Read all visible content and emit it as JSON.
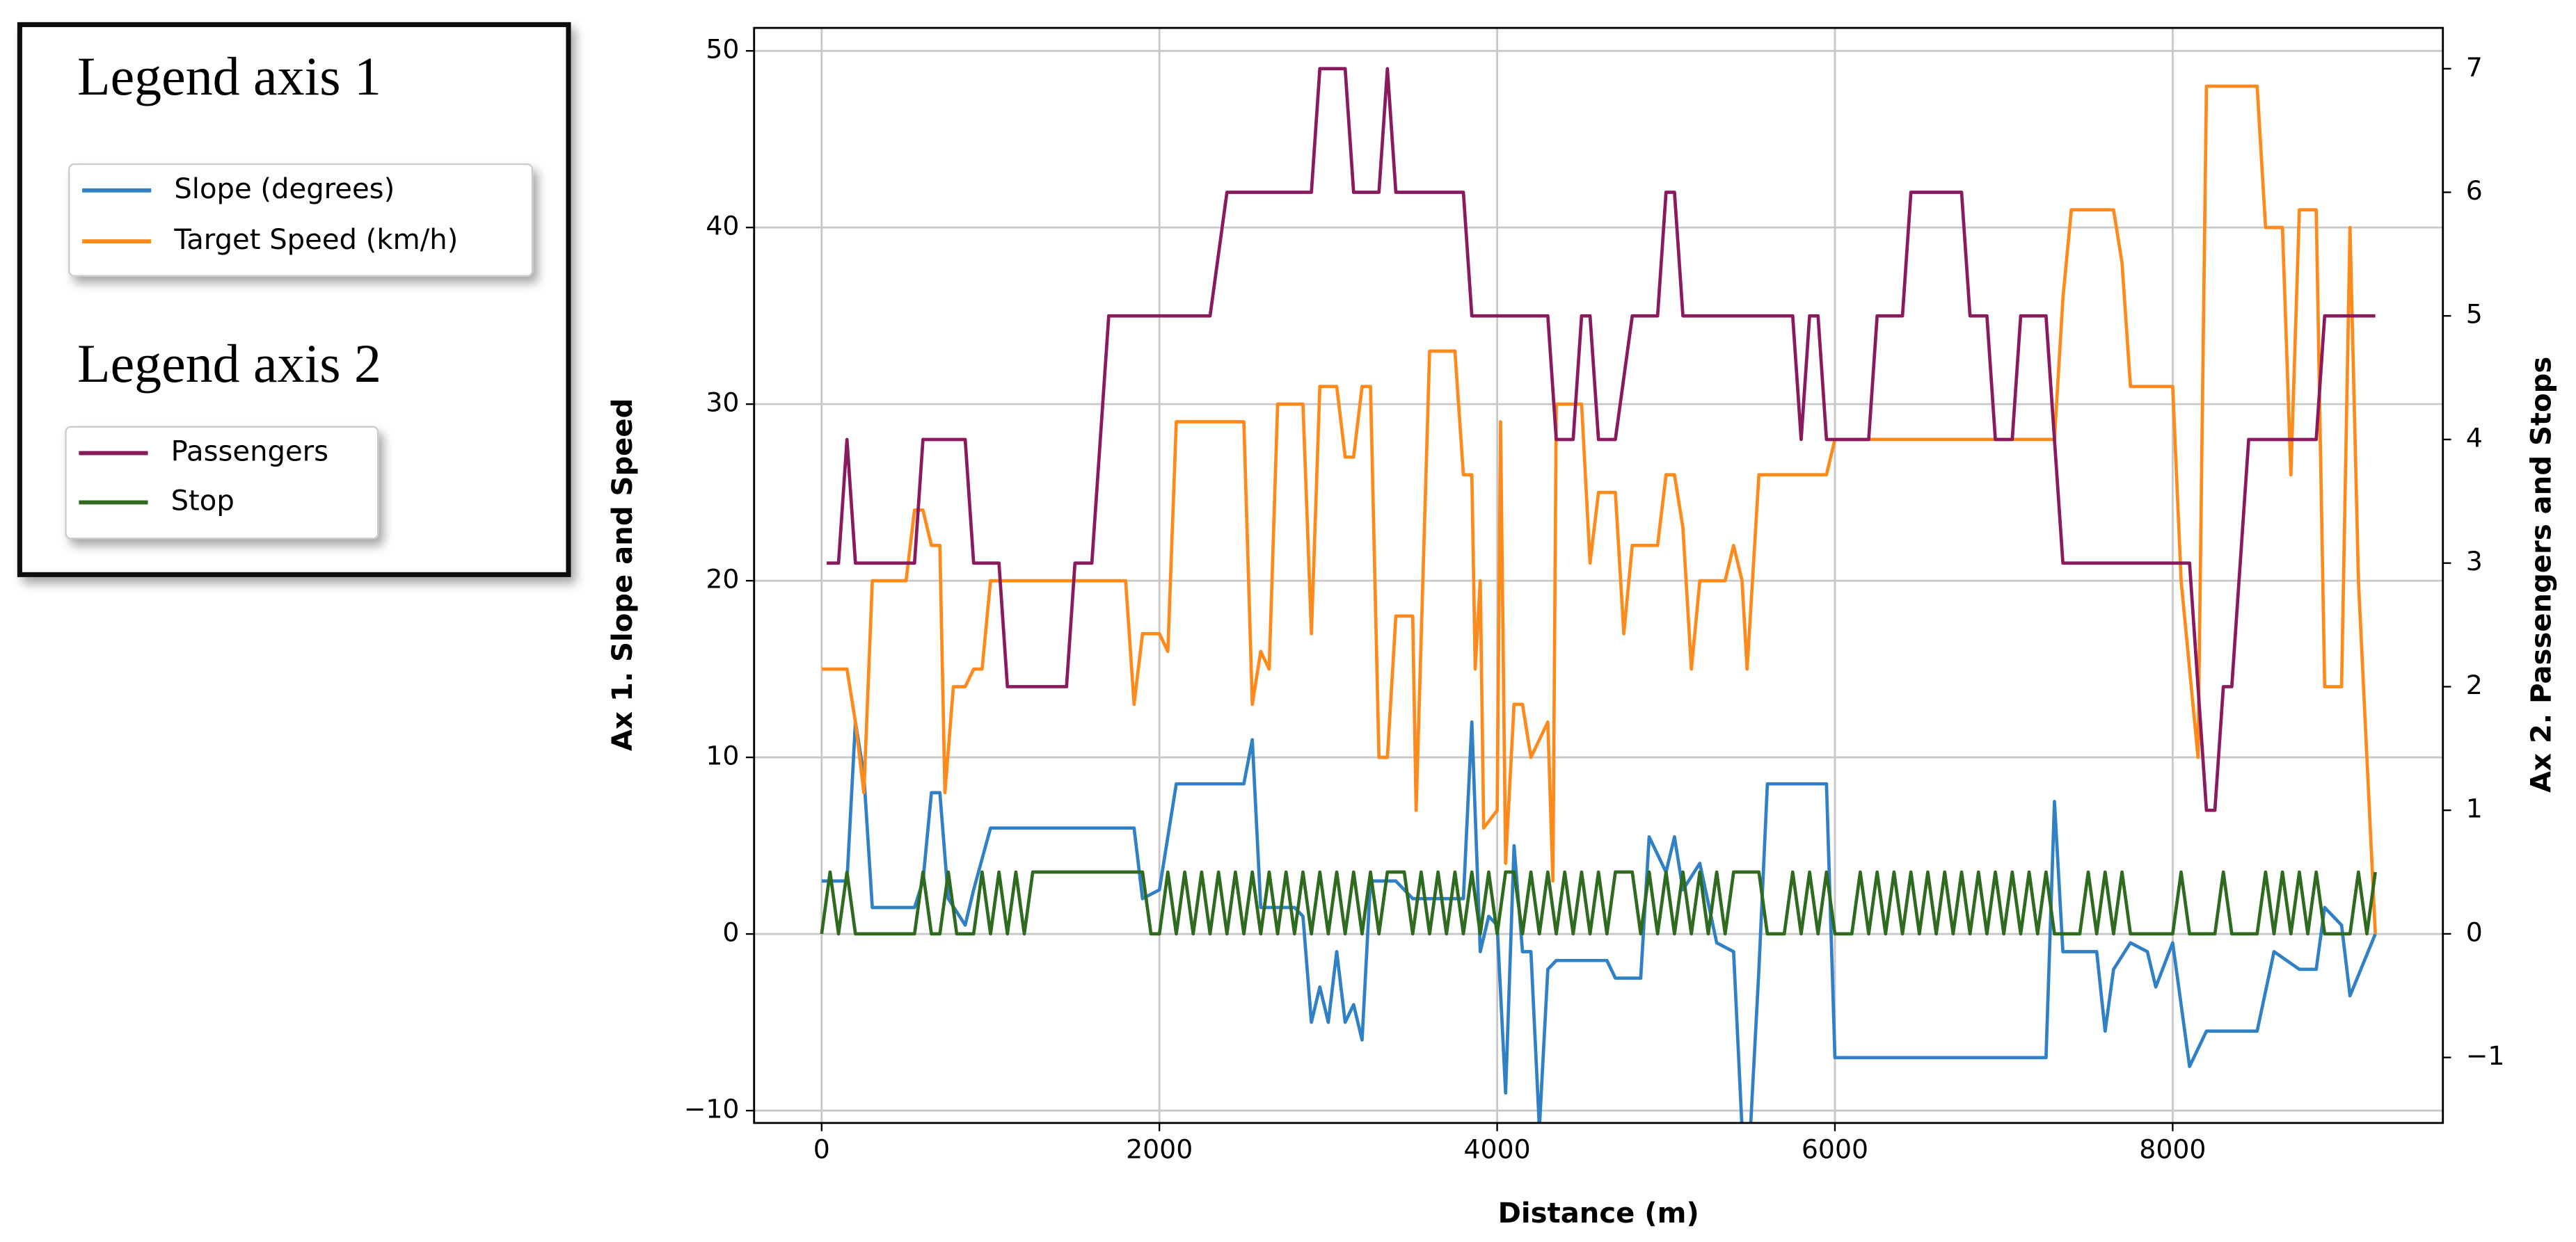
{
  "chart_data": {
    "type": "line",
    "xlabel": "Distance (m)",
    "ylabel": "Ax 1. Slope and Speed",
    "y2label": "Ax 2. Passengers and Stops",
    "legend_titles": [
      "Legend axis 1",
      "Legend axis 2"
    ],
    "xlim": [
      -400,
      9600
    ],
    "xticks": [
      0,
      2000,
      4000,
      6000,
      8000
    ],
    "ylim": [
      -10.7,
      51.3
    ],
    "yticks": [
      {
        "value": -10,
        "label": "−10"
      },
      0,
      10,
      20,
      30,
      40,
      50
    ],
    "y2lim": [
      -1.53,
      7.33
    ],
    "y2ticks": [
      {
        "value": -1,
        "label": "−1"
      },
      0,
      1,
      2,
      3,
      4,
      5,
      6,
      7
    ],
    "grid": true,
    "series": [
      {
        "name": "Slope (degrees)",
        "color": "#2f80c4",
        "x": [
          0,
          150,
          200,
          250,
          300,
          550,
          600,
          650,
          700,
          750,
          850,
          900,
          1000,
          1850,
          1900,
          2000,
          2100,
          2500,
          2550,
          2600,
          2800,
          2850,
          2900,
          2950,
          3000,
          3050,
          3100,
          3150,
          3200,
          3250,
          3400,
          3500,
          3800,
          3850,
          3900,
          3950,
          4000,
          4050,
          4100,
          4150,
          4200,
          4250,
          4300,
          4350,
          4650,
          4700,
          4850,
          4900,
          5000,
          5050,
          5100,
          5200,
          5300,
          5400,
          5450,
          5500,
          5550,
          5600,
          5950,
          6000,
          7250,
          7300,
          7350,
          7550,
          7600,
          7650,
          7750,
          7850,
          7900,
          8000,
          8100,
          8200,
          8500,
          8600,
          8750,
          8850,
          8900,
          9000,
          9050,
          9200
        ],
        "values": [
          3,
          3,
          12,
          9,
          1.5,
          1.5,
          3,
          8,
          8,
          2,
          0.5,
          2.5,
          6,
          6,
          2,
          2.5,
          8.5,
          8.5,
          11,
          1.5,
          1.5,
          1,
          -5,
          -3,
          -5,
          -1,
          -5,
          -4,
          -6,
          3,
          3,
          2,
          2,
          12,
          -1,
          1,
          0.5,
          -9,
          5,
          -1,
          -1,
          -11,
          -2,
          -1.5,
          -1.5,
          -2.5,
          -2.5,
          5.5,
          3.5,
          5.5,
          2.5,
          4,
          -0.5,
          -1,
          -11,
          -11,
          -2,
          8.5,
          8.5,
          -7,
          -7,
          7.5,
          -1,
          -1,
          -5.5,
          -2,
          -0.5,
          -1,
          -3,
          -0.5,
          -7.5,
          -5.5,
          -5.5,
          -1,
          -2,
          -2,
          1.5,
          0.5,
          -3.5,
          0
        ]
      },
      {
        "name": "Target Speed (km/h)",
        "color": "#ff8a1c",
        "x": [
          0,
          150,
          200,
          250,
          300,
          500,
          550,
          600,
          650,
          700,
          730,
          780,
          850,
          900,
          950,
          1000,
          1800,
          1850,
          1900,
          2000,
          2050,
          2100,
          2500,
          2550,
          2600,
          2650,
          2700,
          2850,
          2900,
          2950,
          3050,
          3100,
          3150,
          3200,
          3250,
          3300,
          3350,
          3400,
          3500,
          3520,
          3600,
          3750,
          3800,
          3850,
          3870,
          3900,
          3920,
          4000,
          4020,
          4050,
          4100,
          4150,
          4200,
          4300,
          4330,
          4350,
          4500,
          4550,
          4600,
          4700,
          4750,
          4800,
          4950,
          5000,
          5050,
          5100,
          5150,
          5200,
          5350,
          5400,
          5450,
          5480,
          5550,
          5950,
          6000,
          7300,
          7350,
          7400,
          7650,
          7700,
          7750,
          8000,
          8050,
          8150,
          8200,
          8500,
          8550,
          8650,
          8700,
          8750,
          8850,
          8900,
          9000,
          9050,
          9100,
          9200
        ],
        "values": [
          15,
          15,
          12,
          8,
          20,
          20,
          24,
          24,
          22,
          22,
          8,
          14,
          14,
          15,
          15,
          20,
          20,
          13,
          17,
          17,
          16,
          29,
          29,
          13,
          16,
          15,
          30,
          30,
          17,
          31,
          31,
          27,
          27,
          31,
          31,
          10,
          10,
          18,
          18,
          7,
          33,
          33,
          26,
          26,
          15,
          20,
          6,
          7,
          29,
          4,
          13,
          13,
          10,
          12,
          3,
          30,
          30,
          21,
          25,
          25,
          17,
          22,
          22,
          26,
          26,
          23,
          15,
          20,
          20,
          22,
          20,
          15,
          26,
          26,
          28,
          28,
          36,
          41,
          41,
          38,
          31,
          31,
          20,
          10,
          48,
          48,
          40,
          40,
          26,
          41,
          41,
          14,
          14,
          40,
          20,
          0
        ]
      },
      {
        "name": "Passengers",
        "color": "#8a1a5e",
        "axis": "y2",
        "x": [
          30,
          100,
          150,
          200,
          550,
          600,
          850,
          900,
          1050,
          1100,
          1450,
          1500,
          1600,
          1700,
          2300,
          2400,
          2900,
          2950,
          3100,
          3150,
          3300,
          3350,
          3400,
          3800,
          3850,
          4300,
          4350,
          4450,
          4500,
          4550,
          4600,
          4700,
          4800,
          4950,
          5000,
          5050,
          5100,
          5750,
          5800,
          5850,
          5900,
          5950,
          6200,
          6250,
          6400,
          6450,
          6750,
          6800,
          6900,
          6950,
          7050,
          7100,
          7250,
          7300,
          7350,
          8100,
          8150,
          8200,
          8250,
          8300,
          8350,
          8450,
          8850,
          8900,
          9200
        ],
        "values": [
          3,
          3,
          4,
          3,
          3,
          4,
          4,
          3,
          3,
          2,
          2,
          3,
          3,
          5,
          5,
          6,
          6,
          7,
          7,
          6,
          6,
          7,
          6,
          6,
          5,
          5,
          4,
          4,
          5,
          5,
          4,
          4,
          5,
          5,
          6,
          6,
          5,
          5,
          4,
          5,
          5,
          4,
          4,
          5,
          5,
          6,
          6,
          5,
          5,
          4,
          4,
          5,
          5,
          4,
          3,
          3,
          2,
          1,
          1,
          2,
          2,
          4,
          4,
          5,
          5
        ]
      },
      {
        "name": "Stop",
        "color": "#2e6b1f",
        "axis": "y2",
        "x": [
          0,
          50,
          100,
          150,
          200,
          550,
          600,
          650,
          700,
          750,
          800,
          900,
          950,
          1000,
          1050,
          1100,
          1150,
          1200,
          1250,
          1900,
          1950,
          2000,
          2050,
          2100,
          2150,
          2200,
          2250,
          2300,
          2350,
          2400,
          2450,
          2500,
          2550,
          2600,
          2650,
          2700,
          2750,
          2800,
          2850,
          2900,
          2950,
          3000,
          3050,
          3100,
          3150,
          3200,
          3250,
          3300,
          3350,
          3450,
          3500,
          3550,
          3600,
          3650,
          3700,
          3750,
          3800,
          3850,
          3900,
          3950,
          4000,
          4050,
          4100,
          4150,
          4200,
          4250,
          4300,
          4350,
          4400,
          4450,
          4500,
          4550,
          4600,
          4650,
          4700,
          4800,
          4850,
          4900,
          4950,
          5000,
          5050,
          5100,
          5150,
          5200,
          5250,
          5300,
          5350,
          5400,
          5550,
          5600,
          5700,
          5750,
          5800,
          5850,
          5900,
          5950,
          6000,
          6100,
          6150,
          6200,
          6250,
          6300,
          6350,
          6400,
          6450,
          6500,
          6550,
          6600,
          6650,
          6700,
          6750,
          6800,
          6850,
          6900,
          6950,
          7000,
          7050,
          7100,
          7150,
          7200,
          7250,
          7300,
          7450,
          7500,
          7550,
          7600,
          7650,
          7700,
          7750,
          8000,
          8050,
          8100,
          8250,
          8300,
          8350,
          8500,
          8550,
          8600,
          8650,
          8700,
          8750,
          8800,
          8850,
          8900,
          9050,
          9100,
          9150,
          9200
        ],
        "values": [
          0,
          0.5,
          0,
          0.5,
          0,
          0,
          0.5,
          0,
          0,
          0.5,
          0,
          0,
          0.5,
          0,
          0.5,
          0,
          0.5,
          0,
          0.5,
          0.5,
          0,
          0,
          0.5,
          0,
          0.5,
          0,
          0.5,
          0,
          0.5,
          0,
          0.5,
          0,
          0.5,
          0,
          0.5,
          0,
          0.5,
          0,
          0.5,
          0,
          0.5,
          0,
          0.5,
          0,
          0.5,
          0,
          0.5,
          0,
          0.5,
          0.5,
          0,
          0.5,
          0,
          0.5,
          0,
          0.5,
          0,
          0.5,
          0,
          0.5,
          0,
          0.5,
          0.5,
          0,
          0.5,
          0,
          0.5,
          0,
          0.5,
          0,
          0.5,
          0,
          0.5,
          0,
          0.5,
          0.5,
          0,
          0.5,
          0,
          0.5,
          0,
          0.5,
          0,
          0.5,
          0,
          0.5,
          0,
          0.5,
          0.5,
          0,
          0,
          0.5,
          0,
          0.5,
          0,
          0.5,
          0,
          0,
          0.5,
          0,
          0.5,
          0,
          0.5,
          0,
          0.5,
          0,
          0.5,
          0,
          0.5,
          0,
          0.5,
          0,
          0.5,
          0,
          0.5,
          0,
          0.5,
          0,
          0.5,
          0,
          0.5,
          0,
          0,
          0.5,
          0,
          0.5,
          0,
          0.5,
          0,
          0,
          0.5,
          0,
          0,
          0.5,
          0,
          0,
          0.5,
          0,
          0.5,
          0,
          0.5,
          0,
          0.5,
          0,
          0,
          0.5,
          0,
          0.5
        ]
      }
    ]
  }
}
